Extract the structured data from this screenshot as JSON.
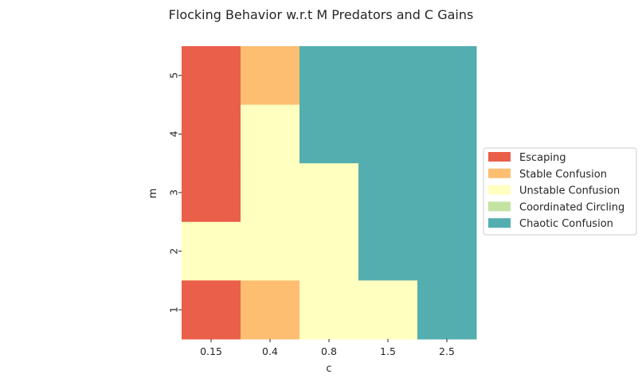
{
  "chart_data": {
    "type": "heatmap",
    "title": "Flocking Behavior w.r.t M Predators and C Gains",
    "xlabel": "c",
    "ylabel": "m",
    "x_categories": [
      "0.15",
      "0.4",
      "0.8",
      "1.5",
      "2.5"
    ],
    "y_categories": [
      "5",
      "4",
      "3",
      "2",
      "1"
    ],
    "legend_placement": "center-right",
    "classes": [
      {
        "name": "Escaping",
        "color": "#e95f4a"
      },
      {
        "name": "Stable Confusion",
        "color": "#fdbe72"
      },
      {
        "name": "Unstable Confusion",
        "color": "#ffffbf"
      },
      {
        "name": "Coordinated Circling",
        "color": "#c2e3a1"
      },
      {
        "name": "Chaotic Confusion",
        "color": "#54aeaf"
      }
    ],
    "grid": [
      [
        "Escaping",
        "Stable Confusion",
        "Chaotic Confusion",
        "Chaotic Confusion",
        "Chaotic Confusion"
      ],
      [
        "Escaping",
        "Unstable Confusion",
        "Chaotic Confusion",
        "Chaotic Confusion",
        "Chaotic Confusion"
      ],
      [
        "Escaping",
        "Unstable Confusion",
        "Unstable Confusion",
        "Chaotic Confusion",
        "Chaotic Confusion"
      ],
      [
        "Unstable Confusion",
        "Unstable Confusion",
        "Unstable Confusion",
        "Chaotic Confusion",
        "Chaotic Confusion"
      ],
      [
        "Escaping",
        "Stable Confusion",
        "Unstable Confusion",
        "Unstable Confusion",
        "Chaotic Confusion"
      ]
    ]
  }
}
